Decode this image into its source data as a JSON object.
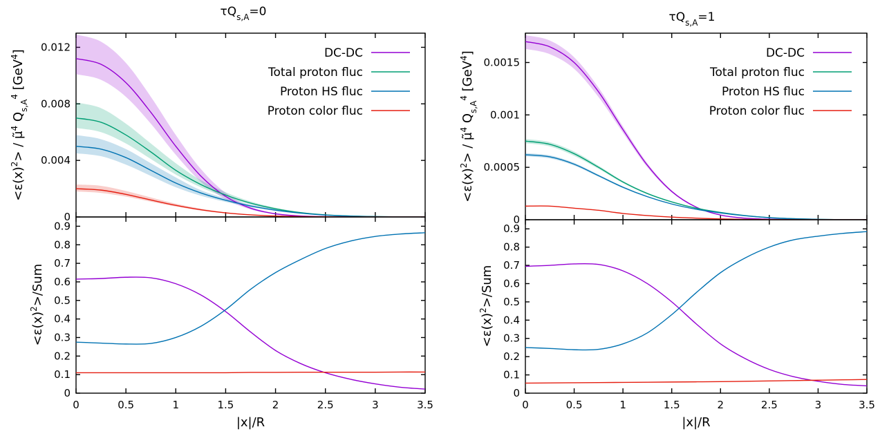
{
  "chart_data": [
    {
      "type": "line",
      "title": "τQ_{s,A}=0",
      "panels": [
        {
          "role": "top",
          "ylabel": "<ε(x)^2> / μ̃^4 Q_{s,A}^4 [GeV^4]",
          "xlim": [
            0,
            3.5
          ],
          "ylim": [
            0,
            0.013
          ],
          "yticks": [
            "0",
            "0.004",
            "0.008",
            "0.012"
          ],
          "ytick_values": [
            0,
            0.004,
            0.008,
            0.012
          ],
          "xticks": [
            0,
            0.5,
            1,
            1.5,
            2,
            2.5,
            3,
            3.5
          ],
          "legend": "top-right",
          "x": [
            0,
            0.25,
            0.5,
            0.75,
            1,
            1.25,
            1.5,
            1.75,
            2,
            2.25,
            2.5,
            2.75,
            3,
            3.25,
            3.5
          ],
          "series": [
            {
              "name": "DC-DC",
              "color": "#9400d3",
              "values": [
                0.0112,
                0.0108,
                0.0095,
                0.0074,
                0.005,
                0.0029,
                0.00145,
                0.00062,
                0.00022,
                7e-05,
                2e-05,
                5e-06,
                1e-06,
                0,
                0
              ],
              "band_lower": [
                0.0101,
                0.0097,
                0.0085,
                0.0066,
                0.0044,
                0.0025,
                0.00125,
                0.00053,
                0.00019,
                6e-05,
                1.7e-05,
                4e-06,
                1e-06,
                0,
                0
              ],
              "band_upper": [
                0.0129,
                0.0124,
                0.0109,
                0.0085,
                0.0058,
                0.0034,
                0.0017,
                0.00072,
                0.00026,
                8e-05,
                2.4e-05,
                6e-06,
                1e-06,
                0,
                0
              ]
            },
            {
              "name": "Total proton fluc",
              "color": "#009e73",
              "values": [
                0.007,
                0.0067,
                0.0058,
                0.0046,
                0.0033,
                0.0023,
                0.00155,
                0.00098,
                0.00058,
                0.00031,
                0.00015,
                7e-05,
                3e-05,
                1e-05,
                5e-06
              ],
              "band_lower": [
                0.0063,
                0.006,
                0.0052,
                0.0041,
                0.003,
                0.0021,
                0.0014,
                0.00089,
                0.00052,
                0.00028,
                0.000135,
                6.3e-05,
                2.7e-05,
                9e-06,
                4.5e-06
              ],
              "band_upper": [
                0.0081,
                0.0077,
                0.0066,
                0.0052,
                0.0038,
                0.0026,
                0.00175,
                0.0011,
                0.00065,
                0.00035,
                0.00017,
                8e-05,
                3.4e-05,
                1.1e-05,
                5.5e-06
              ]
            },
            {
              "name": "Proton HS fluc",
              "color": "#0072b2",
              "values": [
                0.005,
                0.0048,
                0.0042,
                0.0033,
                0.0024,
                0.0017,
                0.00118,
                0.00078,
                0.00048,
                0.00027,
                0.00013,
                6e-05,
                2.5e-05,
                1e-05,
                4e-06
              ],
              "band_lower": [
                0.0045,
                0.0043,
                0.0037,
                0.0029,
                0.0021,
                0.0015,
                0.00106,
                0.0007,
                0.00043,
                0.00024,
                0.000117,
                5.4e-05,
                2.25e-05,
                9e-06,
                3.6e-06
              ],
              "band_upper": [
                0.0058,
                0.0055,
                0.0048,
                0.0038,
                0.0028,
                0.0019,
                0.00132,
                0.00087,
                0.00054,
                0.0003,
                0.000145,
                6.7e-05,
                2.8e-05,
                1.1e-05,
                4.5e-06
              ]
            },
            {
              "name": "Proton color fluc",
              "color": "#e51e10",
              "values": [
                0.002,
                0.0019,
                0.0016,
                0.0012,
                0.00082,
                0.00051,
                0.00029,
                0.00015,
                7e-05,
                3e-05,
                1.3e-05,
                5e-06,
                2e-06,
                0,
                0
              ],
              "band_lower": [
                0.0018,
                0.0017,
                0.00144,
                0.00108,
                0.00074,
                0.00046,
                0.00026,
                0.000135,
                6.3e-05,
                2.7e-05,
                1.17e-05,
                4.5e-06,
                1.8e-06,
                0,
                0
              ],
              "band_upper": [
                0.0023,
                0.0022,
                0.00184,
                0.00138,
                0.00094,
                0.00059,
                0.00033,
                0.00017,
                8e-05,
                3.4e-05,
                1.5e-05,
                5.7e-06,
                2.3e-06,
                0,
                0
              ]
            }
          ]
        },
        {
          "role": "bottom",
          "ylabel": "<ε(x)^2>/Sum",
          "xlabel": "|x|/R",
          "xlim": [
            0,
            3.5
          ],
          "ylim": [
            0,
            0.95
          ],
          "yticks": [
            "0",
            "0.1",
            "0.2",
            "0.3",
            "0.4",
            "0.5",
            "0.6",
            "0.7",
            "0.8",
            "0.9"
          ],
          "ytick_values": [
            0,
            0.1,
            0.2,
            0.3,
            0.4,
            0.5,
            0.6,
            0.7,
            0.8,
            0.9
          ],
          "xticks": [
            "0",
            "0.5",
            "1",
            "1.5",
            "2",
            "2.5",
            "3",
            "3.5"
          ],
          "xtick_values": [
            0,
            0.5,
            1,
            1.5,
            2,
            2.5,
            3,
            3.5
          ],
          "x": [
            0,
            0.25,
            0.5,
            0.75,
            1,
            1.25,
            1.5,
            1.75,
            2,
            2.25,
            2.5,
            2.75,
            3,
            3.25,
            3.5
          ],
          "series": [
            {
              "name": "DC-DC",
              "color": "#9400d3",
              "values": [
                0.615,
                0.618,
                0.625,
                0.622,
                0.59,
                0.53,
                0.44,
                0.33,
                0.23,
                0.16,
                0.11,
                0.075,
                0.05,
                0.032,
                0.022
              ]
            },
            {
              "name": "Proton HS fluc",
              "color": "#0072b2",
              "values": [
                0.275,
                0.27,
                0.265,
                0.268,
                0.3,
                0.36,
                0.45,
                0.56,
                0.65,
                0.72,
                0.78,
                0.82,
                0.845,
                0.858,
                0.865
              ]
            },
            {
              "name": "Proton color fluc",
              "color": "#e51e10",
              "values": [
                0.11,
                0.11,
                0.11,
                0.11,
                0.11,
                0.11,
                0.11,
                0.112,
                0.112,
                0.113,
                0.113,
                0.113,
                0.113,
                0.114,
                0.114
              ]
            }
          ]
        }
      ]
    },
    {
      "type": "line",
      "title": "τQ_{s,A}=1",
      "panels": [
        {
          "role": "top",
          "ylabel": "<ε(x)^2> / μ̃^4 Q_{s,A}^4 [GeV^4]",
          "xlim": [
            0,
            3.5
          ],
          "ylim": [
            0,
            0.00178
          ],
          "yticks": [
            "0",
            "0.0005",
            "0.001",
            "0.0015"
          ],
          "ytick_values": [
            0,
            0.0005,
            0.001,
            0.0015
          ],
          "xticks": [
            0,
            0.5,
            1,
            1.5,
            2,
            2.5,
            3,
            3.5
          ],
          "legend": "top-right",
          "x": [
            0,
            0.25,
            0.5,
            0.75,
            1,
            1.25,
            1.5,
            1.75,
            2,
            2.25,
            2.5,
            2.75,
            3,
            3.25,
            3.5
          ],
          "series": [
            {
              "name": "DC-DC",
              "color": "#9400d3",
              "values": [
                0.0017,
                0.00165,
                0.0015,
                0.00122,
                0.00086,
                0.00052,
                0.00027,
                0.00012,
                4.5e-05,
                1.5e-05,
                5e-06,
                1e-06,
                0,
                0,
                0
              ],
              "band_lower": [
                0.00163,
                0.00158,
                0.00144,
                0.00117,
                0.00083,
                0.0005,
                0.00026,
                0.000115,
                4.3e-05,
                1.45e-05,
                4.8e-06,
                1e-06,
                0,
                0,
                0
              ],
              "band_upper": [
                0.00176,
                0.00171,
                0.00155,
                0.00126,
                0.00089,
                0.00054,
                0.00028,
                0.000125,
                4.7e-05,
                1.55e-05,
                5.2e-06,
                1e-06,
                0,
                0,
                0
              ]
            },
            {
              "name": "Total proton fluc",
              "color": "#009e73",
              "values": [
                0.00075,
                0.00072,
                0.00063,
                0.0005,
                0.00036,
                0.00025,
                0.00017,
                0.00011,
                7e-05,
                4e-05,
                2e-05,
                1e-05,
                4e-06,
                1e-06,
                0
              ],
              "band_lower": [
                0.00073,
                0.0007,
                0.00061,
                0.000485,
                0.00035,
                0.000243,
                0.000165,
                0.000107,
                6.8e-05,
                3.9e-05,
                1.95e-05,
                9.7e-06,
                3.9e-06,
                1e-06,
                0
              ],
              "band_upper": [
                0.00077,
                0.00074,
                0.00065,
                0.000515,
                0.00037,
                0.000257,
                0.000175,
                0.000113,
                7.2e-05,
                4.1e-05,
                2.05e-05,
                1.03e-05,
                4.1e-06,
                1e-06,
                0
              ]
            },
            {
              "name": "Proton HS fluc",
              "color": "#0072b2",
              "values": [
                0.00062,
                0.0006,
                0.00053,
                0.00042,
                0.00031,
                0.00022,
                0.00015,
                0.0001,
                6.5e-05,
                3.8e-05,
                1.9e-05,
                9e-06,
                4e-06,
                1e-06,
                0
              ],
              "band_lower": [
                0.000605,
                0.000585,
                0.000517,
                0.00041,
                0.000302,
                0.000215,
                0.000146,
                9.75e-05,
                6.35e-05,
                3.7e-05,
                1.85e-05,
                8.8e-06,
                3.9e-06,
                1e-06,
                0
              ],
              "band_upper": [
                0.000635,
                0.000615,
                0.000543,
                0.00043,
                0.000318,
                0.000225,
                0.000154,
                0.0001025,
                6.65e-05,
                3.9e-05,
                1.95e-05,
                9.2e-06,
                4.1e-06,
                1e-06,
                0
              ]
            },
            {
              "name": "Proton color fluc",
              "color": "#e51e10",
              "values": [
                0.00013,
                0.00013,
                0.00011,
                9e-05,
                6e-05,
                4e-05,
                2.5e-05,
                1.5e-05,
                8e-06,
                4e-06,
                2e-06,
                1e-06,
                0,
                0,
                0
              ]
            }
          ]
        },
        {
          "role": "bottom",
          "ylabel": "<ε(x)^2>/Sum",
          "xlabel": "|x|/R",
          "xlim": [
            0,
            3.5
          ],
          "ylim": [
            0,
            0.95
          ],
          "yticks": [
            "0",
            "0.1",
            "0.2",
            "0.3",
            "0.4",
            "0.5",
            "0.6",
            "0.7",
            "0.8",
            "0.9"
          ],
          "ytick_values": [
            0,
            0.1,
            0.2,
            0.3,
            0.4,
            0.5,
            0.6,
            0.7,
            0.8,
            0.9
          ],
          "xticks": [
            "0",
            "0.5",
            "1",
            "1.5",
            "2",
            "2.5",
            "3",
            "3.5"
          ],
          "xtick_values": [
            0,
            0.5,
            1,
            1.5,
            2,
            2.5,
            3,
            3.5
          ],
          "x": [
            0,
            0.25,
            0.5,
            0.75,
            1,
            1.25,
            1.5,
            1.75,
            2,
            2.25,
            2.5,
            2.75,
            3,
            3.25,
            3.5
          ],
          "series": [
            {
              "name": "DC-DC",
              "color": "#9400d3",
              "values": [
                0.695,
                0.7,
                0.708,
                0.705,
                0.67,
                0.6,
                0.5,
                0.38,
                0.27,
                0.19,
                0.13,
                0.09,
                0.065,
                0.048,
                0.04
              ]
            },
            {
              "name": "Proton HS fluc",
              "color": "#0072b2",
              "values": [
                0.25,
                0.245,
                0.238,
                0.24,
                0.27,
                0.33,
                0.43,
                0.55,
                0.66,
                0.74,
                0.8,
                0.84,
                0.86,
                0.875,
                0.885
              ]
            },
            {
              "name": "Proton color fluc",
              "color": "#e51e10",
              "values": [
                0.055,
                0.056,
                0.057,
                0.058,
                0.059,
                0.06,
                0.061,
                0.062,
                0.063,
                0.065,
                0.067,
                0.069,
                0.071,
                0.073,
                0.075
              ]
            }
          ]
        }
      ]
    }
  ]
}
